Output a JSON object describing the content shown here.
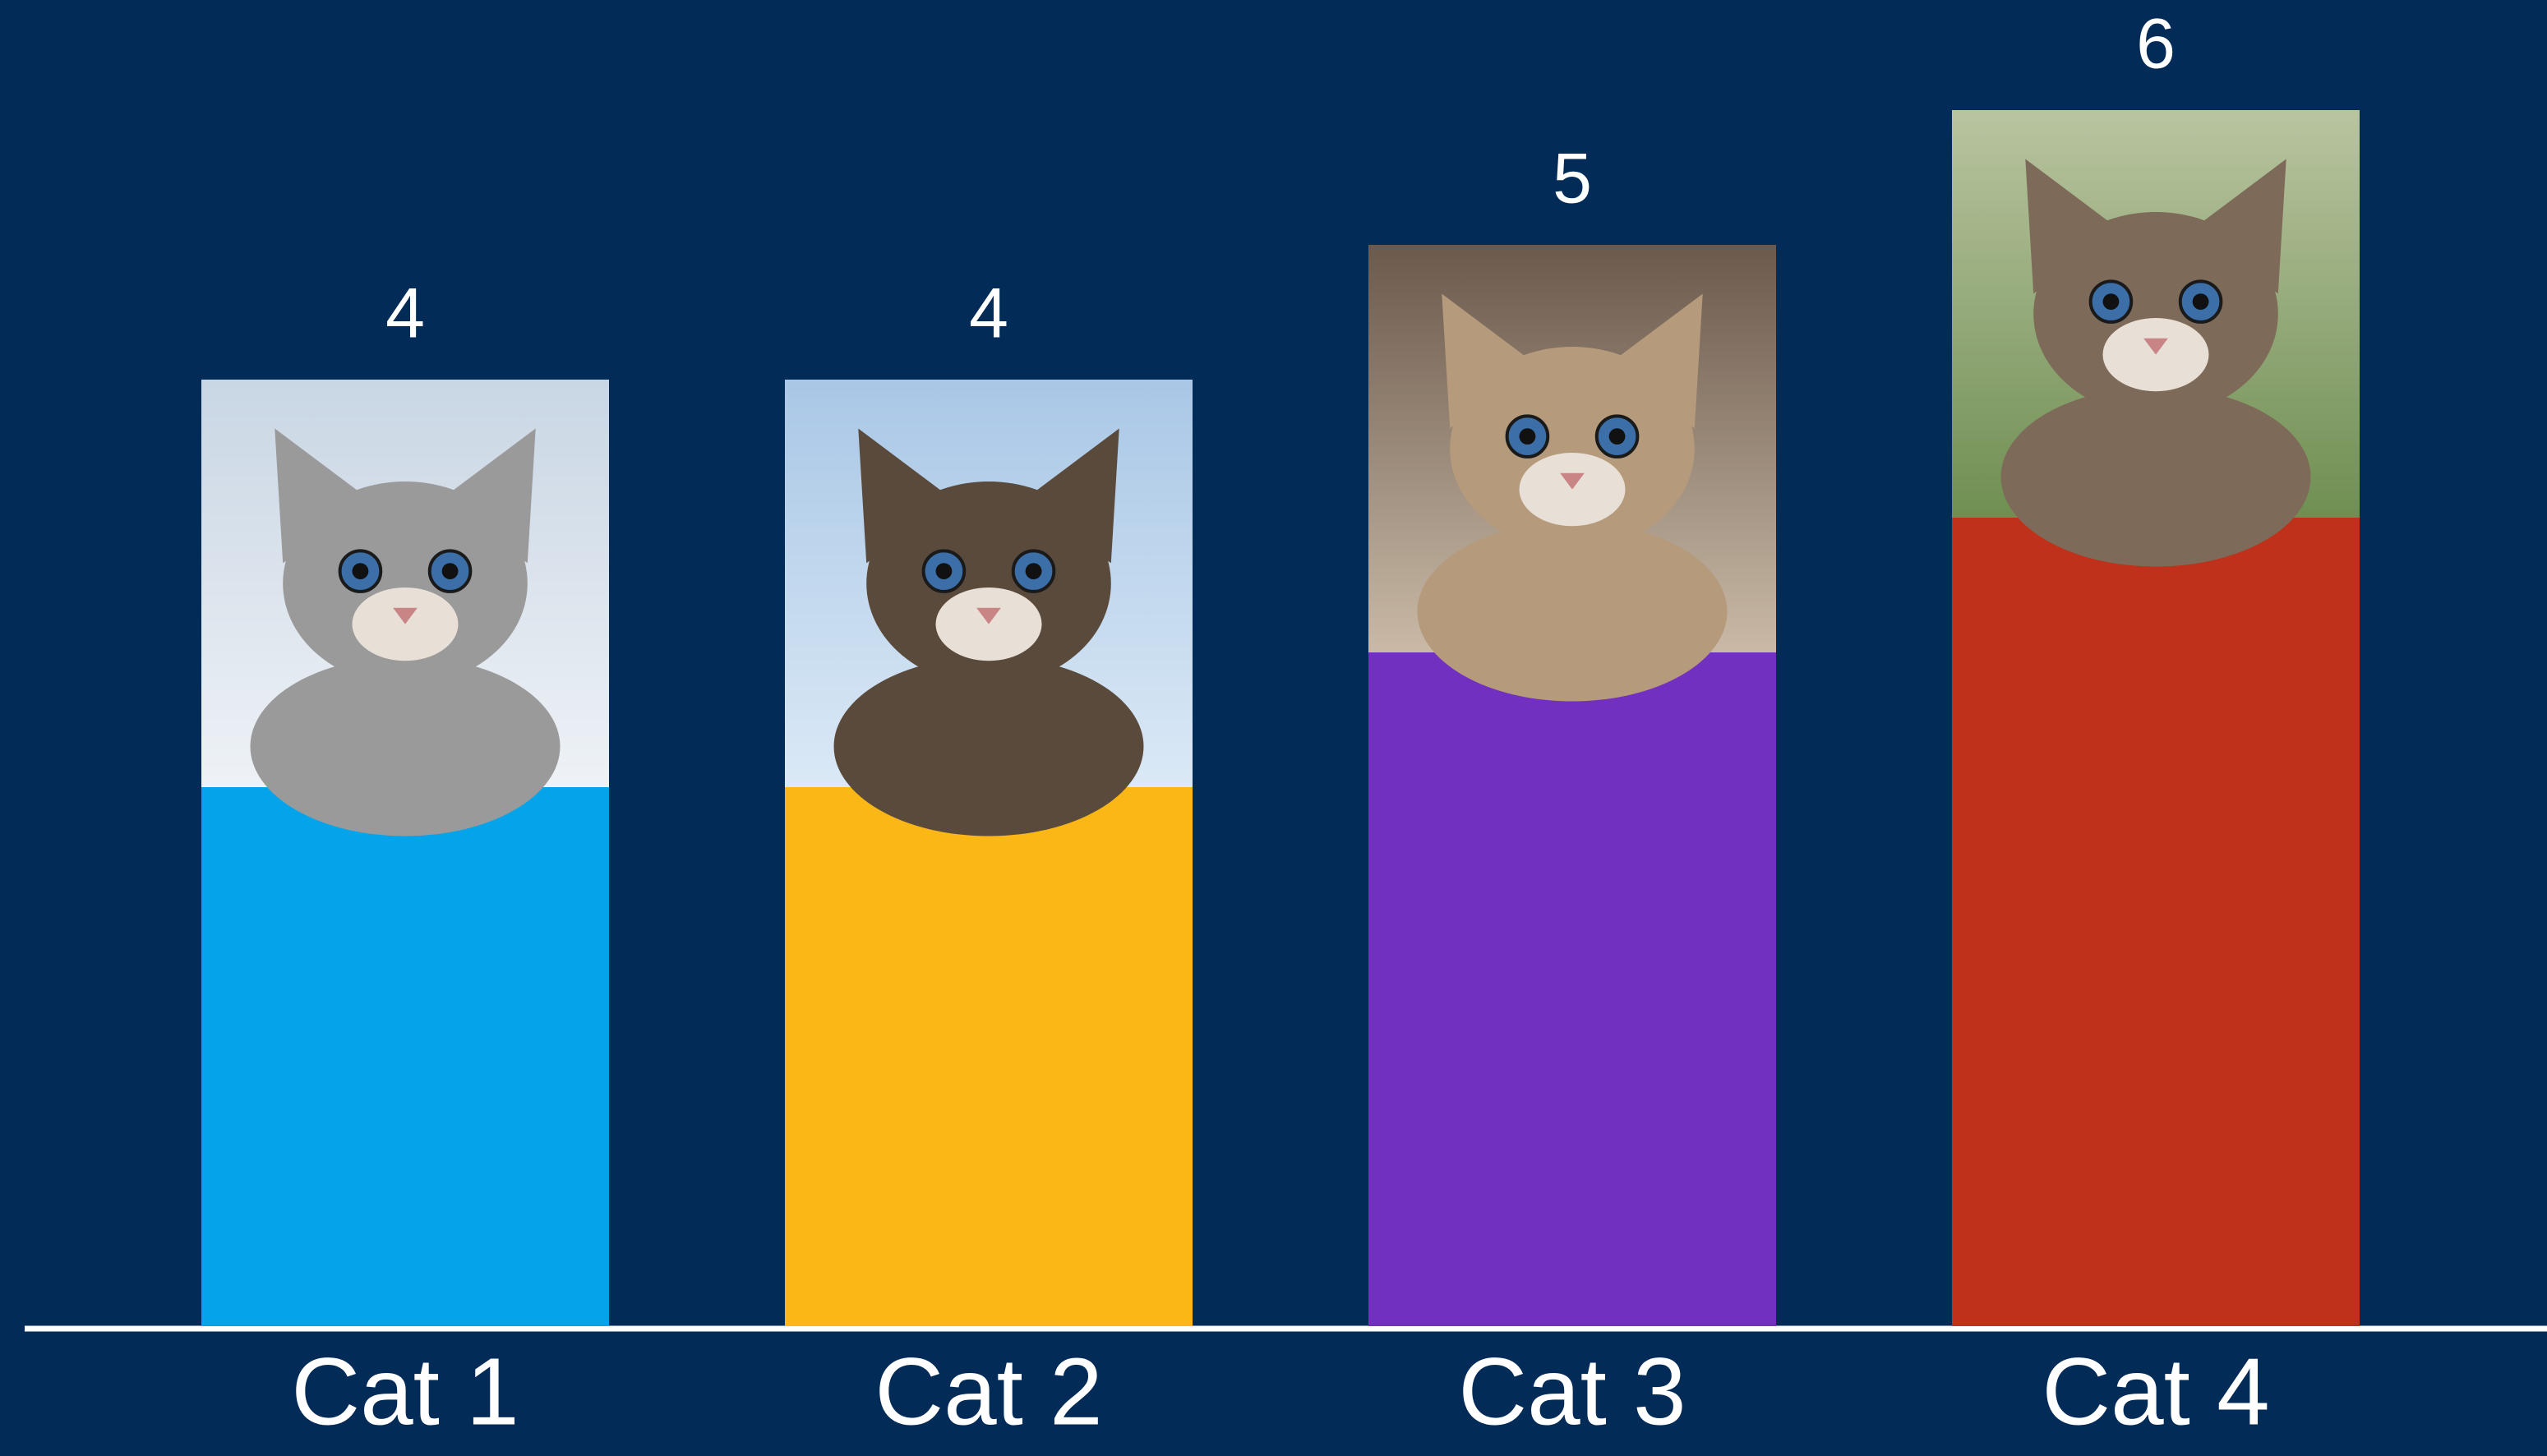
{
  "chart_data": {
    "type": "bar",
    "categories": [
      "Cat 1",
      "Cat 2",
      "Cat 3",
      "Cat 4"
    ],
    "values": [
      4,
      4,
      5,
      6
    ],
    "colors": [
      "#05a4ea",
      "#fbb716",
      "#7230c0",
      "#bf311b"
    ],
    "ylim": [
      0,
      9
    ]
  }
}
